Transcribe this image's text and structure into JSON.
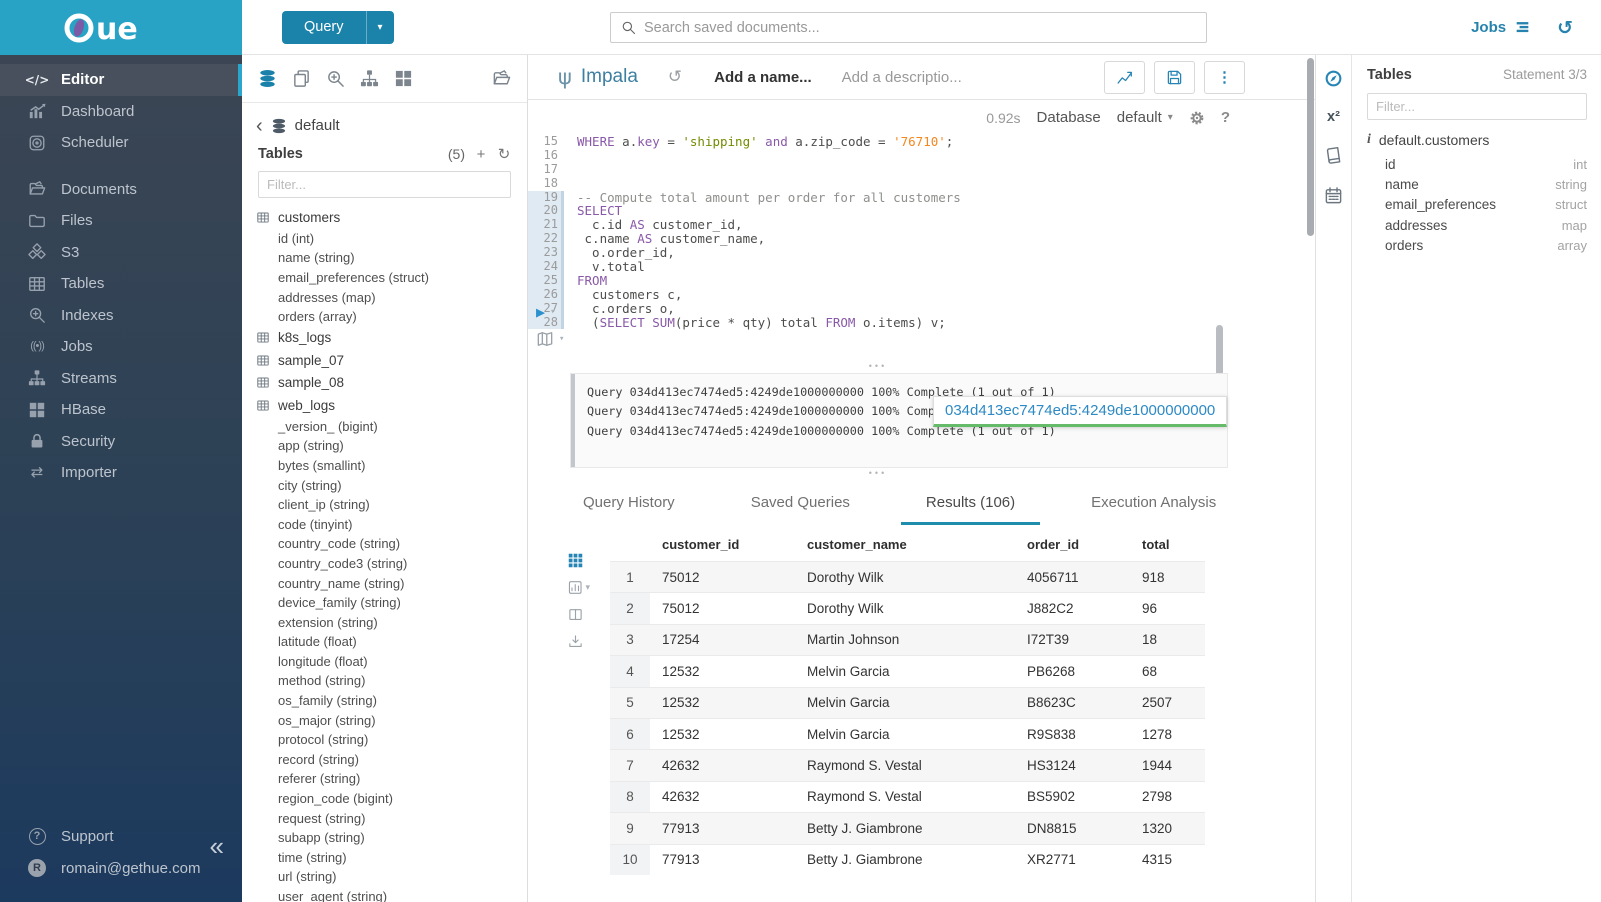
{
  "brand": {
    "logo_text": "ue"
  },
  "topbar": {
    "query_button": "Query",
    "search_placeholder": "Search saved documents...",
    "jobs_label": "Jobs"
  },
  "sidebar": {
    "items": [
      {
        "id": "editor",
        "label": "Editor",
        "icon": "code",
        "active": true
      },
      {
        "id": "dashboard",
        "label": "Dashboard",
        "icon": "dashboard"
      },
      {
        "id": "scheduler",
        "label": "Scheduler",
        "icon": "clock"
      },
      {
        "spacer": true
      },
      {
        "id": "documents",
        "label": "Documents",
        "icon": "folder-open"
      },
      {
        "id": "files",
        "label": "Files",
        "icon": "folder"
      },
      {
        "id": "s3",
        "label": "S3",
        "icon": "cubes"
      },
      {
        "id": "tables",
        "label": "Tables",
        "icon": "table"
      },
      {
        "id": "indexes",
        "label": "Indexes",
        "icon": "search-plus"
      },
      {
        "id": "jobs",
        "label": "Jobs",
        "icon": "broadcast"
      },
      {
        "id": "streams",
        "label": "Streams",
        "icon": "sitemap"
      },
      {
        "id": "hbase",
        "label": "HBase",
        "icon": "grid"
      },
      {
        "id": "security",
        "label": "Security",
        "icon": "lock"
      },
      {
        "id": "importer",
        "label": "Importer",
        "icon": "exchange"
      }
    ],
    "support_label": "Support",
    "user_email": "romain@gethue.com",
    "avatar_letter": "R"
  },
  "assist": {
    "database": "default",
    "tables_label": "Tables",
    "count": "(5)",
    "filter_placeholder": "Filter...",
    "tree": [
      {
        "label": "customers",
        "type": "table"
      },
      {
        "label": "id (int)",
        "type": "column"
      },
      {
        "label": "name (string)",
        "type": "column"
      },
      {
        "label": "email_preferences (struct)",
        "type": "column"
      },
      {
        "label": "addresses (map)",
        "type": "column"
      },
      {
        "label": "orders (array)",
        "type": "column"
      },
      {
        "label": "k8s_logs",
        "type": "table"
      },
      {
        "label": "sample_07",
        "type": "table"
      },
      {
        "label": "sample_08",
        "type": "table"
      },
      {
        "label": "web_logs",
        "type": "table"
      },
      {
        "label": "_version_ (bigint)",
        "type": "column"
      },
      {
        "label": "app (string)",
        "type": "column"
      },
      {
        "label": "bytes (smallint)",
        "type": "column"
      },
      {
        "label": "city (string)",
        "type": "column"
      },
      {
        "label": "client_ip (string)",
        "type": "column"
      },
      {
        "label": "code (tinyint)",
        "type": "column"
      },
      {
        "label": "country_code (string)",
        "type": "column"
      },
      {
        "label": "country_code3 (string)",
        "type": "column"
      },
      {
        "label": "country_name (string)",
        "type": "column"
      },
      {
        "label": "device_family (string)",
        "type": "column"
      },
      {
        "label": "extension (string)",
        "type": "column"
      },
      {
        "label": "latitude (float)",
        "type": "column"
      },
      {
        "label": "longitude (float)",
        "type": "column"
      },
      {
        "label": "method (string)",
        "type": "column"
      },
      {
        "label": "os_family (string)",
        "type": "column"
      },
      {
        "label": "os_major (string)",
        "type": "column"
      },
      {
        "label": "protocol (string)",
        "type": "column"
      },
      {
        "label": "record (string)",
        "type": "column"
      },
      {
        "label": "referer (string)",
        "type": "column"
      },
      {
        "label": "region_code (bigint)",
        "type": "column"
      },
      {
        "label": "request (string)",
        "type": "column"
      },
      {
        "label": "subapp (string)",
        "type": "column"
      },
      {
        "label": "time (string)",
        "type": "column"
      },
      {
        "label": "url (string)",
        "type": "column"
      },
      {
        "label": "user_agent (string)",
        "type": "column"
      }
    ]
  },
  "editor": {
    "engine": "Impala",
    "name_placeholder": "Add a name...",
    "description_placeholder": "Add a descriptio...",
    "duration": "0.92s",
    "database_label": "Database",
    "database_value": "default",
    "code_lines": [
      {
        "n": "15",
        "m": false,
        "t": [
          [
            "WHERE",
            "k"
          ],
          [
            " a.",
            "p"
          ],
          [
            "key",
            "k"
          ],
          [
            " = ",
            "p"
          ],
          [
            "'shipping'",
            "s"
          ],
          [
            " ",
            "p"
          ],
          [
            "and",
            "k"
          ],
          [
            " a.zip_code = ",
            "p"
          ],
          [
            "'76710'",
            "n"
          ],
          [
            ";",
            "p"
          ]
        ]
      },
      {
        "n": "16",
        "m": false,
        "t": []
      },
      {
        "n": "17",
        "m": false,
        "t": []
      },
      {
        "n": "18",
        "m": false,
        "t": []
      },
      {
        "n": "19",
        "m": true,
        "t": [
          [
            "-- Compute total amount per order for all customers",
            "c"
          ]
        ]
      },
      {
        "n": "20",
        "m": true,
        "t": [
          [
            "SELECT",
            "k"
          ]
        ]
      },
      {
        "n": "21",
        "m": true,
        "t": [
          [
            "  c.id ",
            "p"
          ],
          [
            "AS",
            "k"
          ],
          [
            " customer_id,",
            "p"
          ]
        ]
      },
      {
        "n": "22",
        "m": true,
        "t": [
          [
            " c.name ",
            "p"
          ],
          [
            "AS",
            "k"
          ],
          [
            " customer_name,",
            "p"
          ]
        ]
      },
      {
        "n": "23",
        "m": true,
        "t": [
          [
            "  o.order_id,",
            "p"
          ]
        ]
      },
      {
        "n": "24",
        "m": true,
        "t": [
          [
            "  v.total",
            "p"
          ]
        ]
      },
      {
        "n": "25",
        "m": true,
        "t": [
          [
            "FROM",
            "k"
          ]
        ]
      },
      {
        "n": "26",
        "m": true,
        "t": [
          [
            "  customers c,",
            "p"
          ]
        ]
      },
      {
        "n": "27",
        "m": true,
        "t": [
          [
            "  c.orders o,",
            "p"
          ]
        ]
      },
      {
        "n": "28",
        "m": true,
        "t": [
          [
            "  (",
            "p"
          ],
          [
            "SELECT",
            "k"
          ],
          [
            " ",
            "p"
          ],
          [
            "SUM",
            "k"
          ],
          [
            "(price * qty) total ",
            "p"
          ],
          [
            "FROM",
            "k"
          ],
          [
            " o.items) v;",
            "p"
          ]
        ]
      }
    ]
  },
  "log": {
    "lines": [
      "Query 034d413ec7474ed5:4249de1000000000 100% Complete (1 out of 1)",
      "Query 034d413ec7474ed5:4249de1000000000 100% Complete (1 out of 1)",
      "Query 034d413ec7474ed5:4249de1000000000 100% Complete (1 out of 1)"
    ],
    "tooltip": "034d413ec7474ed5:4249de1000000000"
  },
  "tabs": [
    {
      "label": "Query History",
      "active": false
    },
    {
      "label": "Saved Queries",
      "active": false
    },
    {
      "label": "Results (106)",
      "active": true
    },
    {
      "label": "Execution Analysis",
      "active": false
    }
  ],
  "results": {
    "columns": [
      "customer_id",
      "customer_name",
      "order_id",
      "total"
    ],
    "rows": [
      [
        "1",
        "75012",
        "Dorothy Wilk",
        "4056711",
        "918"
      ],
      [
        "2",
        "75012",
        "Dorothy Wilk",
        "J882C2",
        "96"
      ],
      [
        "3",
        "17254",
        "Martin Johnson",
        "I72T39",
        "18"
      ],
      [
        "4",
        "12532",
        "Melvin Garcia",
        "PB6268",
        "68"
      ],
      [
        "5",
        "12532",
        "Melvin Garcia",
        "B8623C",
        "2507"
      ],
      [
        "6",
        "12532",
        "Melvin Garcia",
        "R9S838",
        "1278"
      ],
      [
        "7",
        "42632",
        "Raymond S. Vestal",
        "HS3124",
        "1944"
      ],
      [
        "8",
        "42632",
        "Raymond S. Vestal",
        "BS5902",
        "2798"
      ],
      [
        "9",
        "77913",
        "Betty J. Giambrone",
        "DN8815",
        "1320"
      ],
      [
        "10",
        "77913",
        "Betty J. Giambrone",
        "XR2771",
        "4315"
      ]
    ]
  },
  "right_panel": {
    "title": "Tables",
    "statement": "Statement 3/3",
    "filter_placeholder": "Filter...",
    "table": "default.customers",
    "columns": [
      {
        "name": "id",
        "type": "int"
      },
      {
        "name": "name",
        "type": "string"
      },
      {
        "name": "email_preferences",
        "type": "struct"
      },
      {
        "name": "addresses",
        "type": "map"
      },
      {
        "name": "orders",
        "type": "array"
      }
    ]
  },
  "colors": {
    "brand_teal": "#29a3c5",
    "primary_blue": "#1b82aa",
    "link_blue": "#2785b5",
    "tab_accent": "#1f8dac",
    "tooltip_green": "#66bb6a",
    "keyword_purple": "#8959a8",
    "string_green": "#718c00",
    "number_orange": "#f5871f"
  }
}
